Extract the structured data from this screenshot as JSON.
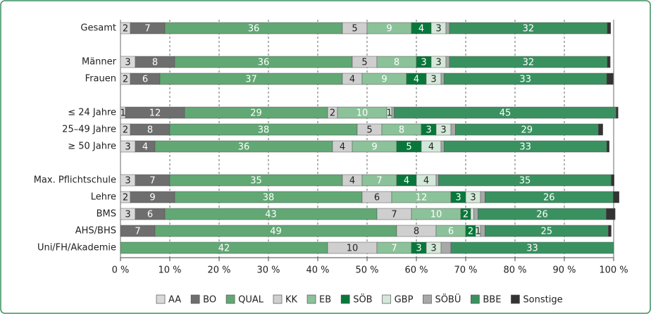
{
  "chart_data": {
    "type": "stacked_bar_horizontal",
    "categories": [
      "Gesamt",
      null,
      "Männer",
      "Frauen",
      null,
      "≤ 24 Jahre",
      "25–49 Jahre",
      "≥ 50 Jahre",
      null,
      "Max. Pflichtschule",
      "Lehre",
      "BMS",
      "AHS/BHS",
      "Uni/FH/Akademie"
    ],
    "series": [
      {
        "name": "AA",
        "color": "#d9d9d9",
        "label_color": "#222222",
        "values": [
          2,
          null,
          3,
          2,
          null,
          1,
          2,
          3,
          null,
          3,
          2,
          3,
          0,
          0
        ],
        "value_labels": [
          "2",
          null,
          "3",
          "2",
          null,
          "1",
          "2",
          "3",
          null,
          "3",
          "2",
          "3",
          null,
          null
        ]
      },
      {
        "name": "BO",
        "color": "#6e6e6e",
        "label_color": "#ffffff",
        "values": [
          7,
          null,
          8,
          6,
          null,
          12,
          8,
          4,
          null,
          7,
          9,
          6,
          7,
          0
        ],
        "value_labels": [
          "7",
          null,
          "8",
          "6",
          null,
          "12",
          "8",
          "4",
          null,
          "7",
          "9",
          "6",
          "7",
          null
        ]
      },
      {
        "name": "QUAL",
        "color": "#62a874",
        "label_color": "#ffffff",
        "values": [
          36,
          null,
          36,
          37,
          null,
          29,
          38,
          36,
          null,
          35,
          38,
          43,
          49,
          42
        ],
        "value_labels": [
          "36",
          null,
          "36",
          "37",
          null,
          "29",
          "38",
          "36",
          null,
          "35",
          "38",
          "43",
          "49",
          "42"
        ]
      },
      {
        "name": "KK",
        "color": "#cfcfcf",
        "label_color": "#222222",
        "values": [
          5,
          null,
          5,
          4,
          null,
          2,
          5,
          4,
          null,
          4,
          6,
          7,
          8,
          10
        ],
        "value_labels": [
          "5",
          null,
          "5",
          "4",
          null,
          "2",
          "5",
          "4",
          null,
          "4",
          "6",
          "7",
          "8",
          "10"
        ]
      },
      {
        "name": "EB",
        "color": "#8cc29a",
        "label_color": "#ffffff",
        "values": [
          9,
          null,
          8,
          9,
          null,
          10,
          8,
          9,
          null,
          7,
          12,
          10,
          6,
          7
        ],
        "value_labels": [
          "9",
          null,
          "8",
          "9",
          null,
          "10",
          "8",
          "9",
          null,
          "7",
          "12",
          "10",
          "6",
          "7"
        ]
      },
      {
        "name": "SÖB",
        "color": "#08783a",
        "label_color": "#ffffff",
        "values": [
          4,
          null,
          3,
          4,
          null,
          0,
          3,
          5,
          null,
          4,
          3,
          2,
          2,
          3
        ],
        "value_labels": [
          "4",
          null,
          "3",
          "4",
          null,
          null,
          "3",
          "5",
          null,
          "4",
          "3",
          "2",
          "2",
          "3"
        ]
      },
      {
        "name": "GBP",
        "color": "#d3e8d8",
        "label_color": "#222222",
        "values": [
          3,
          null,
          3,
          3,
          null,
          1,
          3,
          4,
          null,
          4,
          3,
          0.6,
          1,
          3
        ],
        "value_labels": [
          "3",
          null,
          "3",
          "3",
          null,
          "1",
          "3",
          "4",
          null,
          "4",
          "3",
          null,
          "1",
          "3"
        ]
      },
      {
        "name": "SÖBÜ",
        "color": "#a8a8a8",
        "label_color": "#222222",
        "values": [
          0.7,
          null,
          0.7,
          0.6,
          null,
          0.5,
          0.9,
          0.6,
          null,
          0.5,
          0.9,
          0.9,
          0.9,
          2
        ],
        "value_labels": [
          null,
          null,
          null,
          null,
          null,
          null,
          null,
          null,
          null,
          null,
          null,
          null,
          null,
          null
        ]
      },
      {
        "name": "BBE",
        "color": "#3a9160",
        "label_color": "#ffffff",
        "values": [
          32,
          null,
          32,
          33,
          null,
          45,
          29,
          33,
          null,
          35,
          26,
          26,
          25,
          33
        ],
        "value_labels": [
          "32",
          null,
          "32",
          "33",
          null,
          "45",
          "29",
          "33",
          null,
          "35",
          "26",
          "26",
          "25",
          "33"
        ]
      },
      {
        "name": "Sonstige",
        "color": "#333333",
        "label_color": "#ffffff",
        "values": [
          0.7,
          null,
          0.6,
          1.3,
          null,
          0.4,
          0.9,
          0.5,
          null,
          0.6,
          1.2,
          1.8,
          0.6,
          0
        ],
        "value_labels": [
          null,
          null,
          null,
          null,
          null,
          null,
          null,
          null,
          null,
          null,
          null,
          null,
          null,
          null
        ]
      }
    ],
    "xlim": [
      0,
      100
    ],
    "xticks": [
      {
        "value": 0,
        "label": "0 %"
      },
      {
        "value": 10,
        "label": "10 %"
      },
      {
        "value": 20,
        "label": "20 %"
      },
      {
        "value": 30,
        "label": "30 %"
      },
      {
        "value": 40,
        "label": "40 %"
      },
      {
        "value": 50,
        "label": "50 %"
      },
      {
        "value": 60,
        "label": "60 %"
      },
      {
        "value": 70,
        "label": "70 %"
      },
      {
        "value": 80,
        "label": "80 %"
      },
      {
        "value": 90,
        "label": "90 %"
      },
      {
        "value": 100,
        "label": "100 %"
      }
    ],
    "grid": true,
    "legend": "bottom"
  }
}
